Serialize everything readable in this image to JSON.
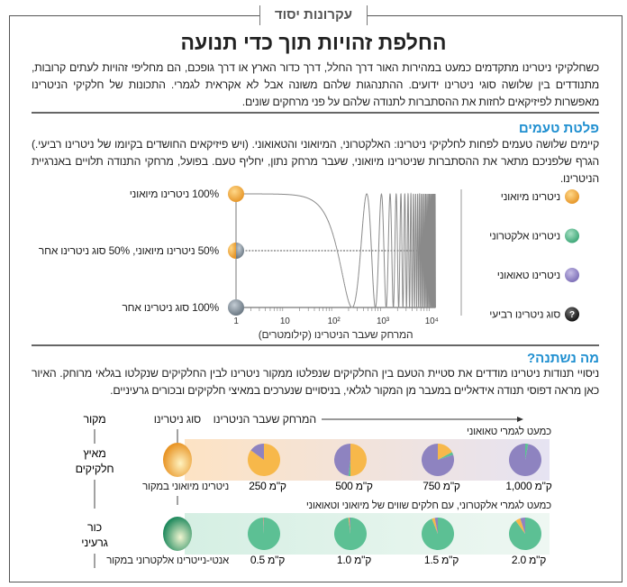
{
  "kicker": "עקרונות יסוד",
  "title": "החלפת זהויות תוך כדי תנועה",
  "intro": "כשחלקיקי ניטרינו מתקדמים כמעט במהירות האור דרך החלל, דרך כדור הארץ או דרך גופכם, הם מחליפי זהויות לעתים קרובות, מתנודדים בין שלושה סוגי ניטרינו ידועים. ההתנהגות שלהם משונה אבל לא אקראית לגמרי. התכונות של חלקיקי הניטרינו מאפשרות לפיזיקאים לחזות את ההסתברות לתנודה שלהם על פני מרחקים שונים.",
  "flavors": {
    "heading": "פלטת טעמים",
    "text": "קיימים שלושה טעמים לפחות לחלקיקי ניטרינו: האלקטרוני, המיואוני והטאואוני. (ויש פיזיקאים החושדים בקיומו של ניטרינו רביעי.) הגרף שלפניכם מתאר את ההסתברות שניטרינו מיואוני, שעבר מרחק נתון, יחליף טעם. בפועל, מרחקי התנודה תלויים באנרגיית הניטרינו.",
    "legend": [
      {
        "label": "ניטרינו מיואוני",
        "color": "#f5b54a"
      },
      {
        "label": "ניטרינו אלקטרוני",
        "color": "#5bbf92"
      },
      {
        "label": "ניטרינו טאואוני",
        "color": "#9486c6"
      },
      {
        "label": "סוג ניטרינו רביעי",
        "color": "#222222",
        "icon": "question-mark"
      }
    ]
  },
  "chart_data": {
    "type": "line",
    "xlabel": "המרחק שעבר הניטרינו (קילומטרים)",
    "xscale": "log",
    "xlim": [
      1,
      12000
    ],
    "xticks": [
      "1",
      "10",
      "10²",
      "10³",
      "10⁴"
    ],
    "ylevels": [
      {
        "value": 1,
        "label": "100% ניטרינו מיואוני"
      },
      {
        "value": 0.5,
        "label": "50% ניטרינו מיואוני, 50% סוג ניטרינו אחר"
      },
      {
        "value": 0,
        "label": "100% סוג ניטרינו אחר"
      }
    ],
    "series": [
      {
        "function": "cos^2(pi*L/470)",
        "first_minimum_km": 235
      }
    ],
    "reference_line": 0.5
  },
  "change": {
    "heading": "מה נשתנה?",
    "text": "ניסויי תנודות ניטרינו מודדים את סטיית הטעם בין החלקיקים שנפלטו ממקור ניטרינו לבין החלקיקים שנקלטו בגלאי מרוחק. האיור כאן מראה דפוסי תנודה אידאליים במעבר מן המקור לגלאי, בניסויים שנערכים במאיצי חלקיקים ובכורים גרעיניים.",
    "col_source": "מקור",
    "col_type": "סוג ניטרינו",
    "col_distance": "המרחק שעבר הניטרינו",
    "rows": [
      {
        "source": "מאיץ חלקיקים",
        "origin": "ניטרינו מיואוני במקור",
        "origin_color": "#f0a030",
        "caption": "כמעט לגמרי טאואוני",
        "pies": [
          {
            "label": "250 ק\"מ",
            "muon": 85,
            "tau": 15,
            "electron": 0
          },
          {
            "label": "500 ק\"מ",
            "muon": 50,
            "tau": 48,
            "electron": 2
          },
          {
            "label": "750 ק\"מ",
            "muon": 17,
            "tau": 80,
            "electron": 3
          },
          {
            "label": "1,000 ק\"מ",
            "muon": 0,
            "tau": 97,
            "electron": 3
          }
        ]
      },
      {
        "source": "כור גרעיני",
        "origin": "אנטי-נייטרינו אלקטרוני במקור",
        "origin_color": "#2e9c6e",
        "caption": "כמעט לגמרי אלקטרוני, עם חלקים שווים של מיואוני וטאואוני",
        "pies": [
          {
            "label": "0.5 ק\"מ",
            "muon": 0.5,
            "tau": 0.5,
            "electron": 99
          },
          {
            "label": "1.0 ק\"מ",
            "muon": 1,
            "tau": 1,
            "electron": 98
          },
          {
            "label": "1.5 ק\"מ",
            "muon": 3,
            "tau": 3,
            "electron": 94
          },
          {
            "label": "2.0 ק\"מ",
            "muon": 5,
            "tau": 5,
            "electron": 90
          }
        ]
      }
    ]
  }
}
